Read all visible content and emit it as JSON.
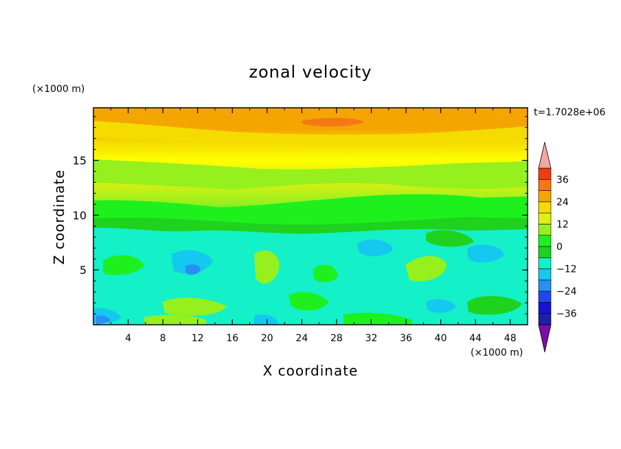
{
  "chart_data": {
    "type": "heatmap",
    "title": "zonal velocity",
    "xlabel": "X coordinate",
    "ylabel": "Z coordinate",
    "x_unit": "(×1000 m)",
    "z_unit": "(×1000 m)",
    "time_label": "t=1.7028e+06",
    "xlim": [
      0,
      50
    ],
    "ylim": [
      0,
      19.8
    ],
    "x_ticks": [
      4,
      8,
      12,
      16,
      20,
      24,
      28,
      32,
      36,
      40,
      44,
      48
    ],
    "y_ticks": [
      5,
      10,
      15
    ],
    "colorbar": {
      "levels": [
        -42,
        -36,
        -30,
        -24,
        -18,
        -12,
        -6,
        0,
        6,
        12,
        18,
        24,
        30,
        36,
        42
      ],
      "colors": [
        "#5a0a9e",
        "#1f1fa8",
        "#1414d2",
        "#1e46f0",
        "#2890f0",
        "#14c8f0",
        "#14f0c8",
        "#1ed21e",
        "#1ef01e",
        "#96f01e",
        "#dcf014",
        "#f5dc00",
        "#f5a500",
        "#f57814",
        "#f03c14",
        "#e61e1e"
      ],
      "under_color": "#7a0ea8",
      "over_color": "#f5a5a5",
      "tick_labels": [
        "36",
        "24",
        "12",
        "0",
        "−12",
        "−24",
        "−36"
      ],
      "tick_values": [
        36,
        24,
        12,
        0,
        -12,
        -24,
        -36
      ]
    },
    "field_description_bands_z": [
      {
        "z": 19.5,
        "u": 24
      },
      {
        "z": 18.0,
        "u": 21
      },
      {
        "z": 16.5,
        "u": 16
      },
      {
        "z": 15.0,
        "u": 13
      },
      {
        "z": 13.0,
        "u": 10
      },
      {
        "z": 11.0,
        "u": 4
      },
      {
        "z": 9.0,
        "u": -2
      },
      {
        "z": 6.0,
        "u": -5
      },
      {
        "z": 3.0,
        "u": -4
      },
      {
        "z": 0.5,
        "u": -6
      }
    ]
  }
}
